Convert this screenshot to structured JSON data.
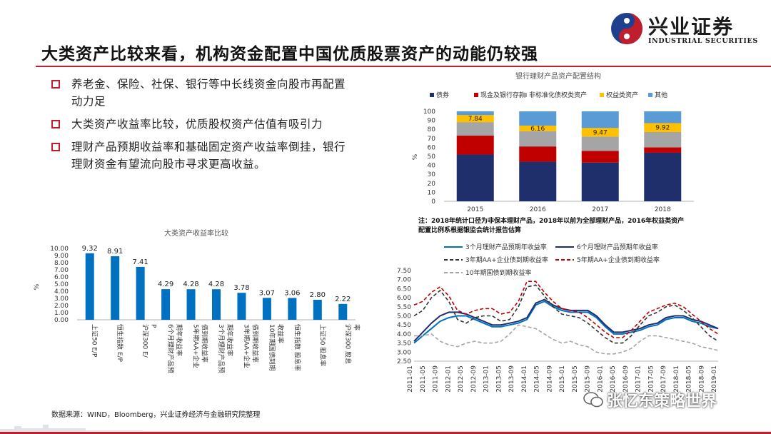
{
  "logo": {
    "name": "兴业证券",
    "sub": "INDUSTRIAL SECURITIES"
  },
  "title": "大类资产比较来看，机构资金配置中国优质股票资产的动能仍较强",
  "bullets": [
    {
      "line1": "养老金、保险、社保、银行等中长线资金向股市再配置",
      "line2": "动力足"
    },
    {
      "line1": "大类资产收益率比较，优质股权资产估值有吸引力"
    },
    {
      "line1": "理财产品预期收益率和基础固定资产收益率倒挂，银行",
      "line2": "理财资金有望流向股市寻求更高收益。"
    }
  ],
  "source": "数据来源：WIND，Bloomberg，兴业证券经济与金融研究院整理",
  "watermark": "张忆东策略世界",
  "colors": {
    "accent": "#bf1e2e",
    "bar": "#0070c0",
    "navy": "#1f2f6b"
  },
  "chart_data": [
    {
      "type": "bar",
      "title": "大类资产收益率比较",
      "ylabel": "%",
      "ylim": [
        0,
        10
      ],
      "yticks": [
        "0.00",
        "1.00",
        "2.00",
        "3.00",
        "4.00",
        "5.00",
        "6.00",
        "7.00",
        "8.00",
        "9.00",
        "10.00"
      ],
      "categories": [
        "上证50 E/P",
        "恒生指数 E/P",
        "沪深300 E/P",
        "6个月理财产品预期年收益率",
        "5年期AA+企业债到期收益率",
        "3个月理财产品预期年收益率",
        "3年期AA+企业债到期收益率",
        "10年期国债到期收益率",
        "恒生指数 股息率",
        "上证50 股息率",
        "沪深300 股息率"
      ],
      "values": [
        9.32,
        8.91,
        7.41,
        4.29,
        4.28,
        4.28,
        3.78,
        3.07,
        3.06,
        2.8,
        2.22
      ],
      "labels": [
        "9.32",
        "8.91",
        "7.41",
        "4.29",
        "4.28",
        "4.28",
        "3.78",
        "3.07",
        "3.06",
        "2.80",
        "2.22"
      ]
    },
    {
      "type": "bar",
      "stacked": true,
      "title": "银行理财产品资产配置结构",
      "ylabel": "%",
      "ylim": [
        0,
        100
      ],
      "yticks": [
        "0",
        "10",
        "20",
        "30",
        "40",
        "50",
        "60",
        "70",
        "80",
        "90",
        "100"
      ],
      "categories": [
        "2015",
        "2016",
        "2017",
        "2018"
      ],
      "series": [
        {
          "name": "债券",
          "color": "#1f2f6b",
          "values": [
            52,
            44,
            43,
            54
          ]
        },
        {
          "name": "现金及银行存款",
          "color": "#c00000",
          "values": [
            21,
            17,
            13,
            6
          ]
        },
        {
          "name": "非标准化债权类资产",
          "color": "#a5a5a5",
          "values": [
            15,
            17,
            16,
            17
          ]
        },
        {
          "name": "权益类资产",
          "color": "#ffc000",
          "values": [
            7.84,
            6.16,
            9.47,
            9.92
          ]
        },
        {
          "name": "其他",
          "color": "#5b9bd5",
          "values": [
            4.16,
            15.84,
            18.53,
            13.08
          ]
        }
      ],
      "data_labels": [
        "7.84",
        "6.16",
        "9.47",
        "9.92"
      ],
      "note_line1": "注：2018年统计口径为非保本理财产品，2018年以前为全部理财产品，2016年权益类资产",
      "note_line2": "配置比例系根据银监会统计报告估算"
    },
    {
      "type": "line",
      "ylim": [
        2.5,
        7.5
      ],
      "yticks": [
        "2.50",
        "3.00",
        "3.50",
        "4.00",
        "4.50",
        "5.00",
        "5.50",
        "6.00",
        "6.50",
        "7.00",
        "7.50"
      ],
      "xticks": [
        "2011-01",
        "2011-05",
        "2011-09",
        "2012-01",
        "2012-05",
        "2012-09",
        "2013-01",
        "2013-05",
        "2013-09",
        "2014-01",
        "2014-05",
        "2014-09",
        "2015-01",
        "2015-05",
        "2015-09",
        "2016-01",
        "2016-05",
        "2016-09",
        "2017-01",
        "2017-05",
        "2017-09",
        "2018-01",
        "2018-05",
        "2018-09",
        "2019-01"
      ],
      "series": [
        {
          "name": "3个月理财产品预期年收益率",
          "color": "#0070c0",
          "dash": "solid",
          "values": [
            3.5,
            3.9,
            4.3,
            4.7,
            4.9,
            5.0,
            5.0,
            4.8,
            4.6,
            4.4,
            4.4,
            4.5,
            4.6,
            4.8,
            5.6,
            5.8,
            5.5,
            5.3,
            5.2,
            5.2,
            5.2,
            4.9,
            4.4,
            4.0,
            4.0,
            4.1,
            4.2,
            4.4,
            4.5,
            4.8,
            4.9,
            4.9,
            4.7,
            4.6,
            4.4,
            4.3
          ]
        },
        {
          "name": "6个月理财产品预期年收益率",
          "color": "#1f2f6b",
          "dash": "solid",
          "values": [
            3.6,
            4.1,
            4.6,
            5.0,
            5.2,
            5.2,
            5.1,
            4.9,
            4.7,
            4.5,
            4.5,
            4.6,
            4.7,
            4.9,
            5.7,
            5.9,
            5.6,
            5.4,
            5.3,
            5.3,
            5.3,
            5.0,
            4.5,
            4.1,
            4.1,
            4.2,
            4.3,
            4.5,
            4.6,
            4.9,
            5.0,
            5.0,
            4.8,
            4.7,
            4.5,
            4.3
          ]
        },
        {
          "name": "3年期AA+企业债到期收益率",
          "color": "#333333",
          "dash": "5,3",
          "values": [
            5.0,
            5.3,
            6.0,
            6.4,
            5.8,
            4.8,
            4.6,
            4.9,
            5.0,
            5.0,
            4.7,
            4.8,
            5.5,
            6.6,
            6.7,
            6.1,
            5.5,
            5.1,
            5.0,
            4.9,
            4.6,
            4.2,
            3.8,
            3.5,
            3.5,
            3.9,
            4.5,
            5.0,
            5.2,
            5.5,
            5.6,
            5.3,
            4.9,
            4.4,
            3.9,
            3.6
          ]
        },
        {
          "name": "5年期AA+企业债到期收益率",
          "color": "#c00000",
          "dash": "5,3",
          "values": [
            5.6,
            5.8,
            6.3,
            6.6,
            6.1,
            5.3,
            5.1,
            5.3,
            5.4,
            5.4,
            5.1,
            5.2,
            5.8,
            6.9,
            6.9,
            6.3,
            5.8,
            5.4,
            5.3,
            5.2,
            4.9,
            4.5,
            4.1,
            3.8,
            3.8,
            4.2,
            4.7,
            5.2,
            5.4,
            5.6,
            5.7,
            5.5,
            5.1,
            4.7,
            4.3,
            4.0
          ]
        },
        {
          "name": "10年期国债到期收益率",
          "color": "#a5a5a5",
          "dash": "5,3",
          "values": [
            3.9,
            3.9,
            4.0,
            3.6,
            3.4,
            3.3,
            3.5,
            3.6,
            3.5,
            3.5,
            3.6,
            4.0,
            4.5,
            4.4,
            4.3,
            4.0,
            3.7,
            3.5,
            3.6,
            3.4,
            3.3,
            3.0,
            2.9,
            2.9,
            3.0,
            3.2,
            3.6,
            3.9,
            3.9,
            3.8,
            3.7,
            3.6,
            3.5,
            3.3,
            3.2,
            3.1
          ]
        }
      ]
    }
  ]
}
